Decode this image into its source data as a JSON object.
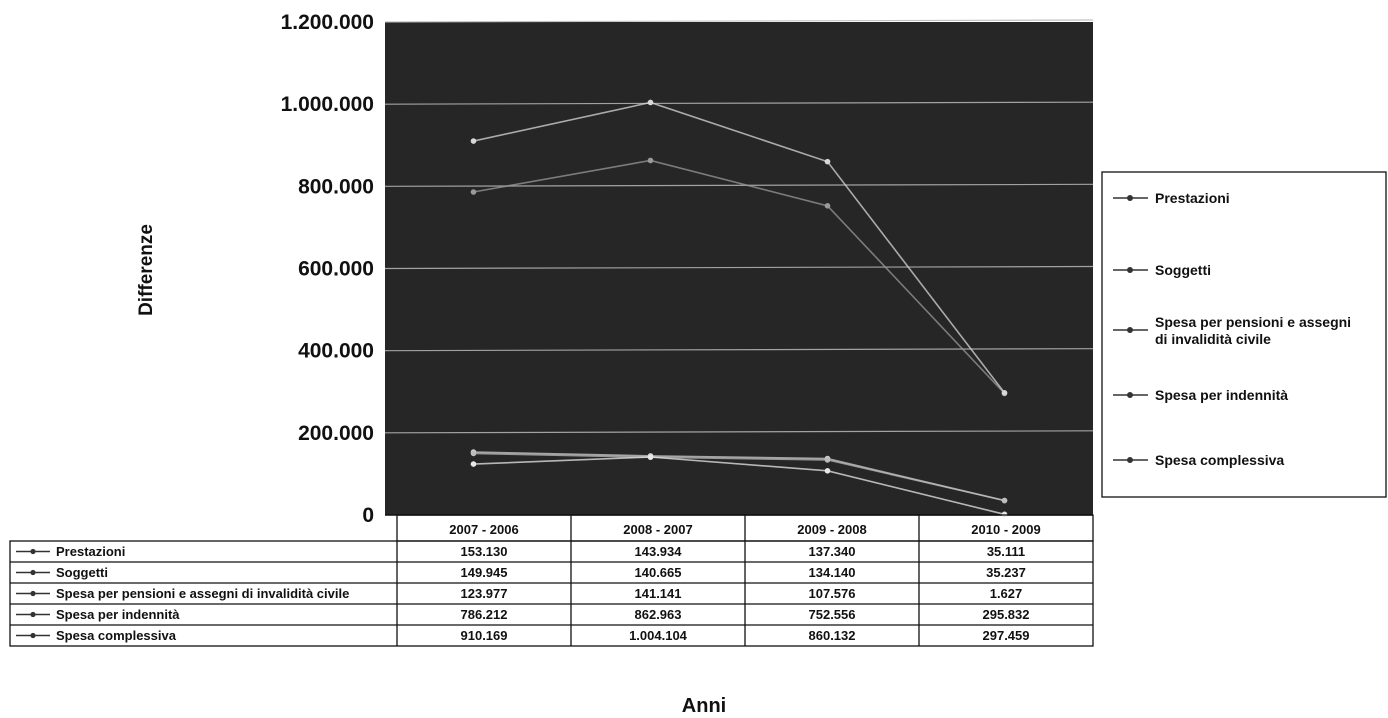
{
  "chart_data": {
    "type": "line",
    "title": "",
    "xlabel": "Anni",
    "ylabel": "Differenze",
    "categories": [
      "2007 - 2006",
      "2008 - 2007",
      "2009 - 2008",
      "2010 - 2009"
    ],
    "ylim": [
      0,
      1200000
    ],
    "yticks": [
      0,
      200000,
      400000,
      600000,
      800000,
      1000000,
      1200000
    ],
    "ytick_labels": [
      "0",
      "200.000",
      "400.000",
      "600.000",
      "800.000",
      "1.000.000",
      "1.200.000"
    ],
    "grid": true,
    "legend_position": "right",
    "data_table": true,
    "series": [
      {
        "name": "Prestazioni",
        "values": [
          153130,
          143934,
          137340,
          35111
        ],
        "labels": [
          "153.130",
          "143.934",
          "137.340",
          "35.111"
        ],
        "color": "#cfcfcf",
        "marker": "diamond"
      },
      {
        "name": "Soggetti",
        "values": [
          149945,
          140665,
          134140,
          35237
        ],
        "labels": [
          "149.945",
          "140.665",
          "134.140",
          "35.237"
        ],
        "color": "#bdbdbd",
        "marker": "square"
      },
      {
        "name": "Spesa per pensioni e assegni di invalidità civile",
        "legend_name": "Spesa per pensioni e assegni di invalidità civile",
        "table_name": "Spesa per pensioni e assegni di invalidità civile",
        "values": [
          123977,
          141141,
          107576,
          1627
        ],
        "labels": [
          "123.977",
          "141.141",
          "107.576",
          "1.627"
        ],
        "color": "#e8e8e8",
        "marker": "triangle"
      },
      {
        "name": "Spesa per indennità",
        "values": [
          786212,
          862963,
          752556,
          295832
        ],
        "labels": [
          "786.212",
          "862.963",
          "752.556",
          "295.832"
        ],
        "color": "#9a9a9a",
        "marker": "x"
      },
      {
        "name": "Spesa complessiva",
        "values": [
          910169,
          1004104,
          860132,
          297459
        ],
        "labels": [
          "910.169",
          "1.004.104",
          "860.132",
          "297.459"
        ],
        "color": "#d8d8d8",
        "marker": "star"
      }
    ]
  },
  "colors": {
    "plot_background": "#262626",
    "gridline": "#b8b8b8",
    "frame": "#111111"
  }
}
